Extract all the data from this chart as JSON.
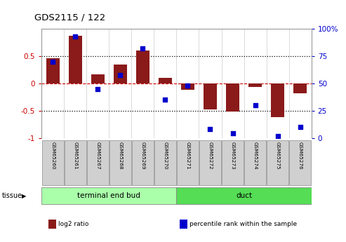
{
  "title": "GDS2115 / 122",
  "samples": [
    "GSM65260",
    "GSM65261",
    "GSM65267",
    "GSM65268",
    "GSM65269",
    "GSM65270",
    "GSM65271",
    "GSM65272",
    "GSM65273",
    "GSM65274",
    "GSM65275",
    "GSM65276"
  ],
  "log2_ratio": [
    0.46,
    0.88,
    0.17,
    0.35,
    0.6,
    0.1,
    -0.12,
    -0.47,
    -0.52,
    -0.07,
    -0.62,
    -0.18
  ],
  "percentile": [
    70,
    93,
    45,
    58,
    82,
    35,
    48,
    8,
    4,
    30,
    2,
    10
  ],
  "tissue_groups": [
    {
      "label": "terminal end bud",
      "start": 0,
      "end": 6,
      "color": "#aaffaa"
    },
    {
      "label": "duct",
      "start": 6,
      "end": 12,
      "color": "#55dd55"
    }
  ],
  "bar_color": "#8B1A1A",
  "dot_color": "#0000cc",
  "ylim_left": [
    -1,
    1
  ],
  "ylim_right": [
    0,
    100
  ],
  "yticks_left": [
    -1,
    -0.5,
    0,
    0.5
  ],
  "ytick_labels_left": [
    "-1",
    "-0.5",
    "0",
    "0.5"
  ],
  "yticks_right": [
    0,
    25,
    50,
    75,
    100
  ],
  "ytick_labels_right": [
    "0",
    "25",
    "50",
    "75",
    "100%"
  ],
  "hlines_dotted": [
    -0.5,
    0.5
  ],
  "hline_red_dashed": 0,
  "bg_color": "#ffffff",
  "plot_bg": "#ffffff",
  "legend_items": [
    {
      "label": "log2 ratio",
      "color": "#8B1A1A"
    },
    {
      "label": "percentile rank within the sample",
      "color": "#0000cc"
    }
  ]
}
